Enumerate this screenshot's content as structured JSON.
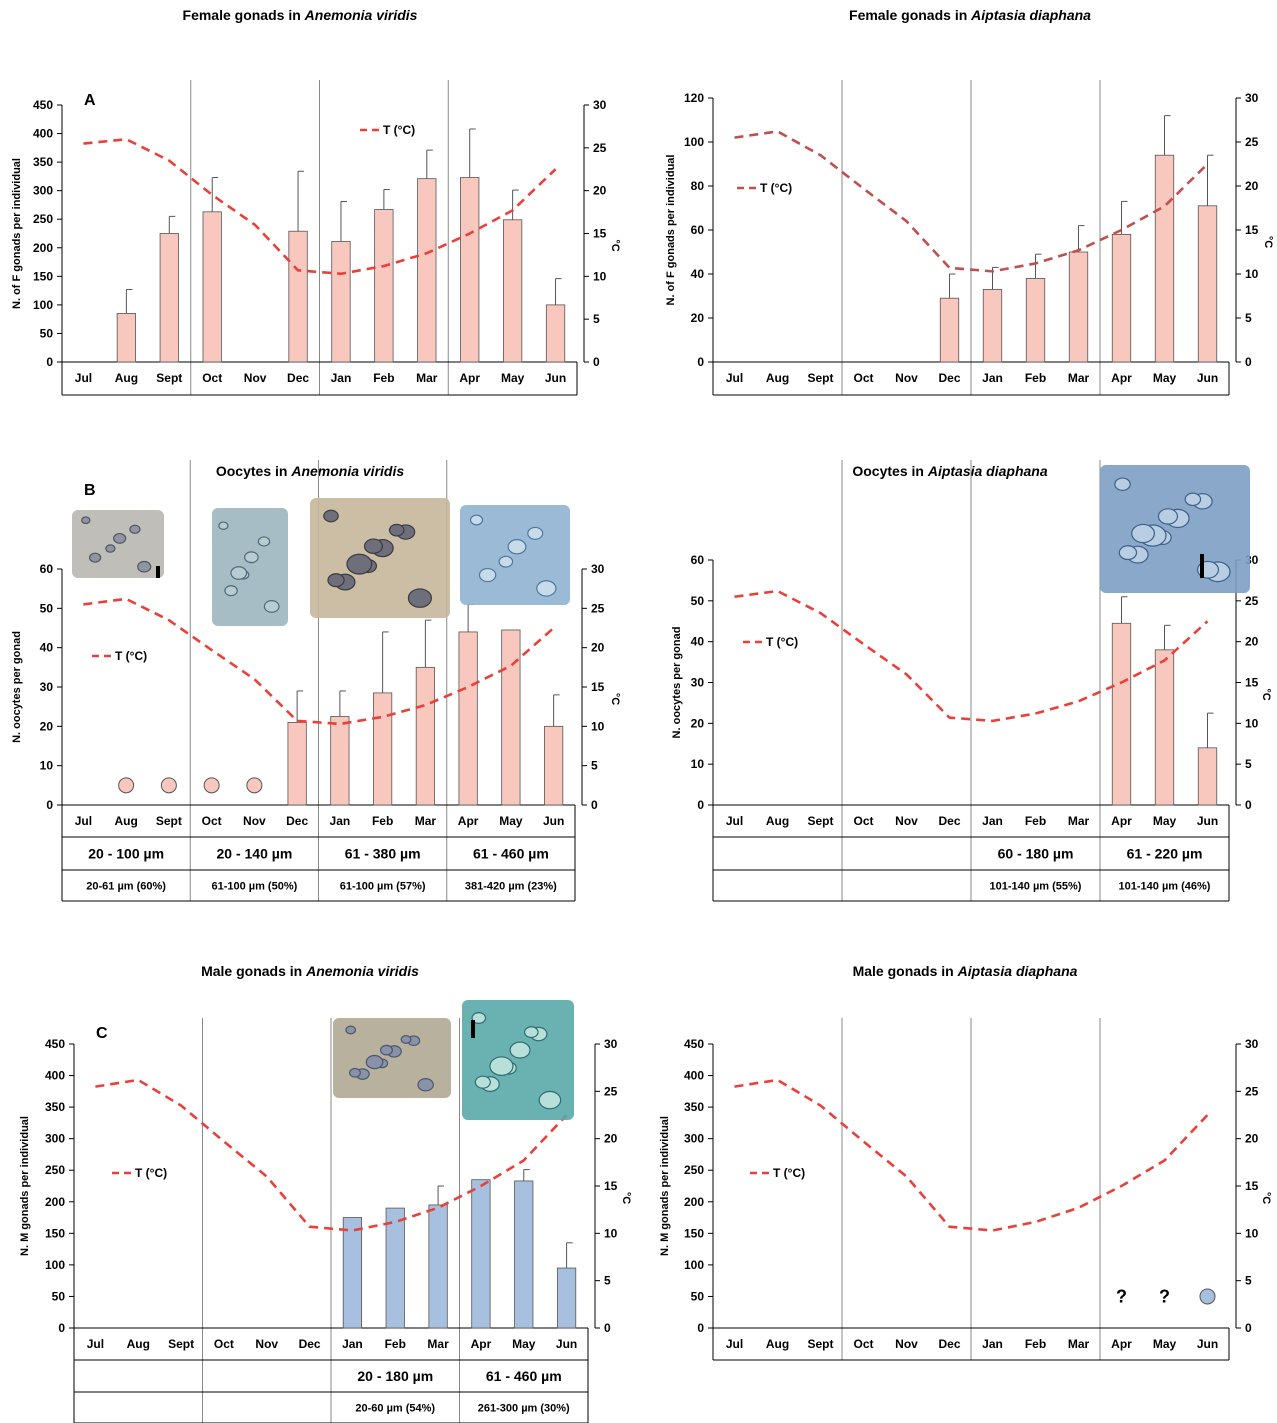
{
  "months": [
    "Jul",
    "Aug",
    "Sept",
    "Oct",
    "Nov",
    "Dec",
    "Jan",
    "Feb",
    "Mar",
    "Apr",
    "May",
    "Jun"
  ],
  "temperature_legend": "T (°C)",
  "right_axis_label": "°C",
  "chart_data": [
    {
      "id": "A",
      "type": "bar",
      "letter": "A",
      "title_plain": "Female gonads in ",
      "title_italic": "Anemonia viridis",
      "ylabel": "N. of F gonads per individual",
      "ylim": [
        0,
        450
      ],
      "yticks": [
        0,
        50,
        100,
        150,
        200,
        250,
        300,
        350,
        400,
        450
      ],
      "y2lim": [
        0,
        30
      ],
      "y2ticks": [
        0,
        5,
        10,
        15,
        20,
        25,
        30
      ],
      "categories": [
        "Jul",
        "Aug",
        "Sept",
        "Oct",
        "Nov",
        "Dec",
        "Jan",
        "Feb",
        "Mar",
        "Apr",
        "May",
        "Jun"
      ],
      "series": [
        {
          "type": "bar",
          "color": "#f8c8be",
          "values": [
            null,
            85,
            225,
            263,
            null,
            229,
            211,
            267,
            321,
            323,
            249,
            100
          ],
          "error": [
            null,
            42,
            30,
            60,
            null,
            105,
            70,
            35,
            50,
            85,
            52,
            46
          ]
        },
        {
          "type": "line",
          "name": "T (°C)",
          "color": "#e8413b",
          "values": [
            25.5,
            26.0,
            23.5,
            19.5,
            16.0,
            10.7,
            10.3,
            11.2,
            12.7,
            15.0,
            17.7,
            22.5
          ]
        }
      ],
      "legend": "middle-right"
    },
    {
      "id": "A2",
      "type": "bar",
      "title_plain": "Female gonads in ",
      "title_italic": "Aiptasia diaphana",
      "ylabel": "N. of F gonads per individual",
      "ylim": [
        0,
        120
      ],
      "yticks": [
        0,
        20,
        40,
        60,
        80,
        100,
        120
      ],
      "y2lim": [
        0,
        30
      ],
      "y2ticks": [
        0,
        5,
        10,
        15,
        20,
        25,
        30
      ],
      "categories": [
        "Jul",
        "Aug",
        "Sept",
        "Oct",
        "Nov",
        "Dec",
        "Jan",
        "Feb",
        "Mar",
        "Apr",
        "May",
        "Jun"
      ],
      "series": [
        {
          "type": "bar",
          "color": "#f8c8be",
          "values": [
            null,
            null,
            null,
            null,
            null,
            29,
            33,
            38,
            50,
            58,
            94,
            71
          ],
          "error": [
            null,
            null,
            null,
            null,
            null,
            11,
            10,
            11,
            12,
            15,
            18,
            23
          ]
        },
        {
          "type": "line",
          "name": "T (°C)",
          "color": "#c0504d",
          "values": [
            25.5,
            26.2,
            23.5,
            19.7,
            16.0,
            10.7,
            10.3,
            11.2,
            12.7,
            15.0,
            17.7,
            22.5
          ]
        }
      ],
      "legend": "upper-left"
    },
    {
      "id": "B",
      "type": "bar",
      "letter": "B",
      "title_plain": "Oocytes in ",
      "title_italic": "Anemonia viridis",
      "ylabel": "N. oocytes per gonad",
      "ylim": [
        0,
        60
      ],
      "yticks": [
        0,
        10,
        20,
        30,
        40,
        50,
        60
      ],
      "y2lim": [
        0,
        30
      ],
      "y2ticks": [
        0,
        5,
        10,
        15,
        20,
        25,
        30
      ],
      "categories": [
        "Jul",
        "Aug",
        "Sept",
        "Oct",
        "Nov",
        "Dec",
        "Jan",
        "Feb",
        "Mar",
        "Apr",
        "May",
        "Jun"
      ],
      "series": [
        {
          "type": "bar",
          "color": "#f8c8be",
          "values": [
            null,
            null,
            null,
            null,
            null,
            21,
            22.5,
            28.5,
            35,
            44,
            44.5,
            20
          ],
          "error": [
            null,
            null,
            null,
            null,
            null,
            8,
            6.5,
            15.5,
            12,
            7,
            null,
            8
          ]
        },
        {
          "type": "line",
          "name": "T (°C)",
          "color": "#e8413b",
          "values": [
            25.5,
            26.2,
            23.5,
            19.7,
            16.0,
            10.7,
            10.3,
            11.2,
            12.7,
            15.0,
            17.7,
            22.5
          ]
        }
      ],
      "markers": {
        "months": [
          1,
          2,
          3,
          4
        ],
        "color": "#f8c8be",
        "value": 5
      },
      "legend": "middle-left",
      "size_table": {
        "columns": [
          [
            0,
            2
          ],
          [
            3,
            5
          ],
          [
            6,
            8
          ],
          [
            9,
            11
          ]
        ],
        "ranges": [
          "20 - 100 µm",
          "20 - 140 µm",
          "61 - 380 µm",
          "61 - 460 µm"
        ],
        "modes": [
          "20-61 µm (60%)",
          "61-100 µm (50%)",
          "61-100 µm (57%)",
          "381-420 µm (23%)"
        ]
      }
    },
    {
      "id": "B2",
      "type": "bar",
      "title_plain": "Oocytes in ",
      "title_italic": "Aiptasia diaphana",
      "ylabel": "N. oocytes per gonad",
      "ylim": [
        0,
        60
      ],
      "yticks": [
        0,
        10,
        20,
        30,
        40,
        50,
        60
      ],
      "y2lim": [
        0,
        30
      ],
      "y2ticks": [
        0,
        5,
        10,
        15,
        20,
        25,
        30
      ],
      "categories": [
        "Jul",
        "Aug",
        "Sept",
        "Oct",
        "Nov",
        "Dec",
        "Jan",
        "Feb",
        "Mar",
        "Apr",
        "May",
        "Jun"
      ],
      "series": [
        {
          "type": "bar",
          "color": "#f8c8be",
          "values": [
            null,
            null,
            null,
            null,
            null,
            null,
            null,
            null,
            null,
            44.5,
            38,
            14
          ],
          "error": [
            null,
            null,
            null,
            null,
            null,
            null,
            null,
            null,
            null,
            6.5,
            6,
            8.5
          ]
        },
        {
          "type": "line",
          "name": "T (°C)",
          "color": "#e8413b",
          "values": [
            25.5,
            26.2,
            23.5,
            19.7,
            16.0,
            10.7,
            10.3,
            11.2,
            12.7,
            15.0,
            17.7,
            22.5
          ]
        }
      ],
      "legend": "upper-left",
      "size_table": {
        "columns": [
          [
            0,
            2
          ],
          [
            3,
            5
          ],
          [
            6,
            8
          ],
          [
            9,
            11
          ]
        ],
        "ranges": [
          "",
          "",
          "60 - 180 µm",
          "61 - 220 µm"
        ],
        "modes": [
          "",
          "",
          "101-140 µm (55%)",
          "101-140 µm (46%)"
        ]
      }
    },
    {
      "id": "C",
      "type": "bar",
      "letter": "C",
      "title_plain": "Male gonads in ",
      "title_italic": "Anemonia viridis",
      "ylabel": "N. M gonads per individual",
      "ylim": [
        0,
        450
      ],
      "yticks": [
        0,
        50,
        100,
        150,
        200,
        250,
        300,
        350,
        400,
        450
      ],
      "y2lim": [
        0,
        30
      ],
      "y2ticks": [
        0,
        5,
        10,
        15,
        20,
        25,
        30
      ],
      "categories": [
        "Jul",
        "Aug",
        "Sept",
        "Oct",
        "Nov",
        "Dec",
        "Jan",
        "Feb",
        "Mar",
        "Apr",
        "May",
        "Jun"
      ],
      "series": [
        {
          "type": "bar",
          "color": "#a8c0e0",
          "values": [
            null,
            null,
            null,
            null,
            null,
            null,
            175,
            190,
            195,
            235,
            233,
            95
          ],
          "error": [
            null,
            null,
            null,
            null,
            null,
            null,
            null,
            null,
            30,
            null,
            18,
            40
          ]
        },
        {
          "type": "line",
          "name": "T (°C)",
          "color": "#e8413b",
          "values": [
            25.5,
            26.2,
            23.5,
            19.7,
            16.0,
            10.7,
            10.3,
            11.2,
            12.7,
            15.0,
            17.7,
            22.5
          ]
        }
      ],
      "legend": "middle-left",
      "size_table": {
        "columns": [
          [
            0,
            2
          ],
          [
            3,
            5
          ],
          [
            6,
            8
          ],
          [
            9,
            11
          ]
        ],
        "ranges": [
          "",
          "",
          "20 - 180 µm",
          "61 - 460 µm"
        ],
        "modes": [
          "",
          "",
          "20-60 µm (54%)",
          "261-300 µm (30%)"
        ]
      }
    },
    {
      "id": "C2",
      "type": "bar",
      "title_plain": "Male gonads in ",
      "title_italic": "Aiptasia diaphana",
      "ylabel": "N. M gonads per individual",
      "ylim": [
        0,
        450
      ],
      "yticks": [
        0,
        50,
        100,
        150,
        200,
        250,
        300,
        350,
        400,
        450
      ],
      "y2lim": [
        0,
        30
      ],
      "y2ticks": [
        0,
        5,
        10,
        15,
        20,
        25,
        30
      ],
      "categories": [
        "Jul",
        "Aug",
        "Sept",
        "Oct",
        "Nov",
        "Dec",
        "Jan",
        "Feb",
        "Mar",
        "Apr",
        "May",
        "Jun"
      ],
      "series": [
        {
          "type": "line",
          "name": "T (°C)",
          "color": "#e8413b",
          "values": [
            25.5,
            26.2,
            23.5,
            19.7,
            16.0,
            10.7,
            10.3,
            11.2,
            12.7,
            15.0,
            17.7,
            22.5
          ]
        }
      ],
      "markers": {
        "months": [
          11
        ],
        "color": "#a8c0e0",
        "value": 50
      },
      "question_marks": {
        "months": [
          9,
          10
        ],
        "text": "?"
      },
      "legend": "middle-left"
    }
  ]
}
